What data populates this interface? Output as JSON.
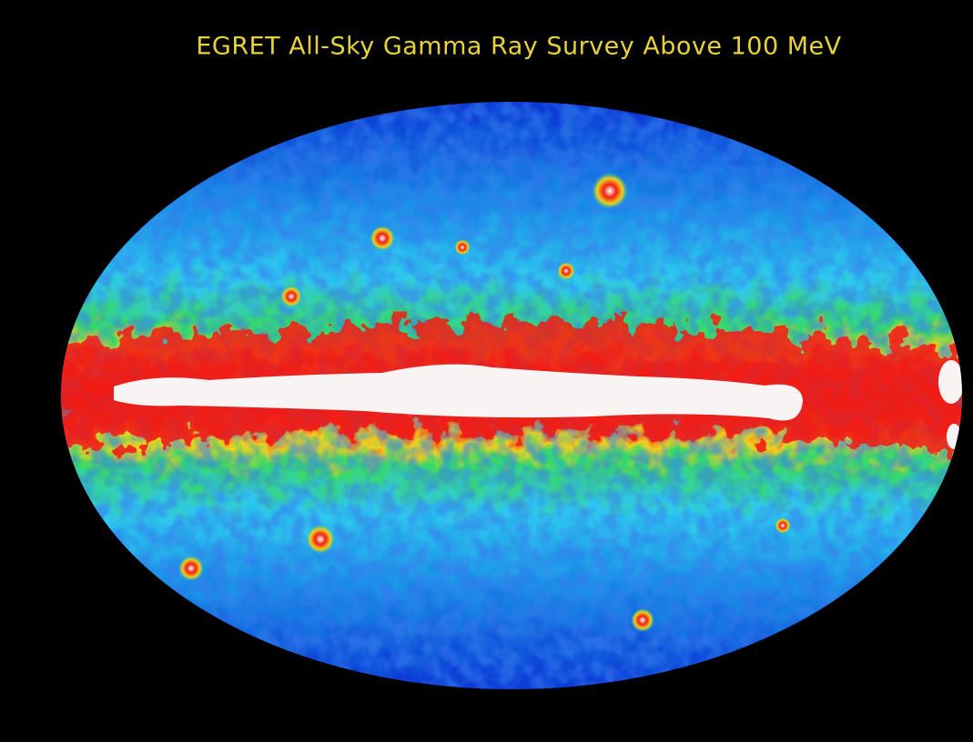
{
  "title": "EGRET All-Sky Gamma Ray Survey Above 100 MeV"
}
